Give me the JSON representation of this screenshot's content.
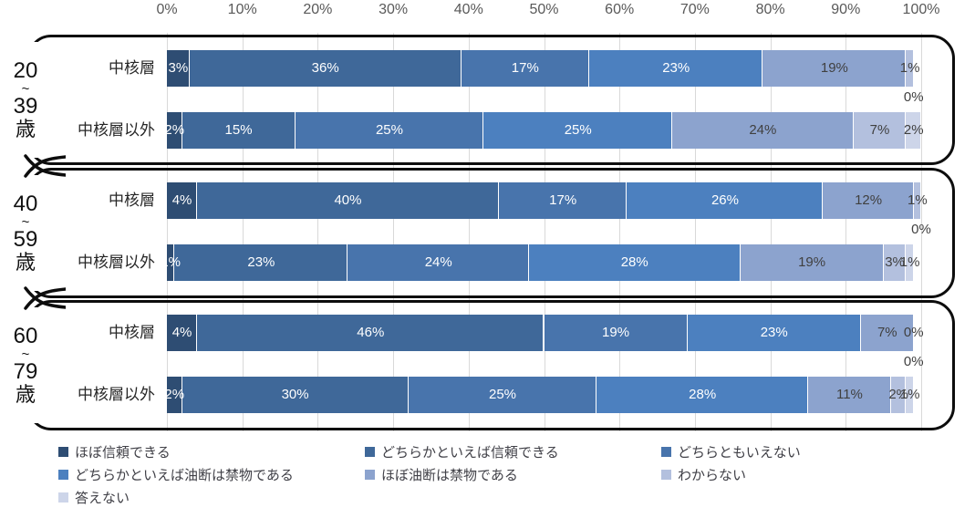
{
  "chart_data": {
    "type": "bar",
    "variant": "horizontal-stacked-100",
    "title": "",
    "x_axis": {
      "unit": "%",
      "min": 0,
      "max": 100,
      "tick_step": 10,
      "tick_labels": [
        "0%",
        "10%",
        "20%",
        "30%",
        "40%",
        "50%",
        "60%",
        "70%",
        "80%",
        "90%",
        "100%"
      ],
      "grid": true
    },
    "legend_position": "bottom",
    "series": [
      {
        "name": "ほぼ信頼できる",
        "color": "#2E4D73",
        "label_color": "#ffffff"
      },
      {
        "name": "どちらかといえば信頼できる",
        "color": "#3F6899",
        "label_color": "#ffffff"
      },
      {
        "name": "どちらともいえない",
        "color": "#4874AC",
        "label_color": "#ffffff"
      },
      {
        "name": "どちらかといえば油断は禁物である",
        "color": "#4C80BF",
        "label_color": "#ffffff"
      },
      {
        "name": "ほぼ油断は禁物である",
        "color": "#8CA3CE",
        "label_color": "#404040"
      },
      {
        "name": "わからない",
        "color": "#B3C0DE",
        "label_color": "#404040"
      },
      {
        "name": "答えない",
        "color": "#CDD5E9",
        "label_color": "#404040"
      }
    ],
    "groups": [
      {
        "age_label": "20〜39歳",
        "age_label_lines": [
          "20",
          "~",
          "39",
          "歳"
        ],
        "rows": [
          {
            "label": "中核層",
            "values": [
              3,
              36,
              17,
              23,
              19,
              1,
              0
            ],
            "value_labels": [
              "3%",
              "36%",
              "17%",
              "23%",
              "19%",
              "1%",
              "0%"
            ]
          },
          {
            "label": "中核層以外",
            "values": [
              2,
              15,
              25,
              25,
              24,
              7,
              2
            ],
            "value_labels": [
              "2%",
              "15%",
              "25%",
              "25%",
              "24%",
              "7%",
              "2%"
            ]
          }
        ]
      },
      {
        "age_label": "40〜59歳",
        "age_label_lines": [
          "40",
          "~",
          "59",
          "歳"
        ],
        "rows": [
          {
            "label": "中核層",
            "values": [
              4,
              40,
              17,
              26,
              12,
              1,
              0
            ],
            "value_labels": [
              "4%",
              "40%",
              "17%",
              "26%",
              "12%",
              "1%",
              "0%"
            ]
          },
          {
            "label": "中核層以外",
            "values": [
              1,
              23,
              24,
              28,
              19,
              3,
              1
            ],
            "value_labels": [
              "1%",
              "23%",
              "24%",
              "28%",
              "19%",
              "3%",
              "1%"
            ]
          }
        ]
      },
      {
        "age_label": "60〜79歳",
        "age_label_lines": [
          "60",
          "~",
          "79",
          "歳"
        ],
        "rows": [
          {
            "label": "中核層",
            "values": [
              4,
              46,
              19,
              23,
              7,
              0,
              0
            ],
            "value_labels": [
              "4%",
              "46%",
              "19%",
              "23%",
              "7%",
              "0%",
              "0%"
            ]
          },
          {
            "label": "中核層以外",
            "values": [
              2,
              30,
              25,
              28,
              11,
              2,
              1
            ],
            "value_labels": [
              "2%",
              "30%",
              "25%",
              "28%",
              "11%",
              "2%",
              "1%"
            ]
          }
        ]
      }
    ],
    "colors": {
      "grid": "#d9d9d9",
      "axis_text": "#595959",
      "group_border": "#0d0d0d",
      "row_label_text": "#262626",
      "legend_text": "#404047"
    }
  }
}
